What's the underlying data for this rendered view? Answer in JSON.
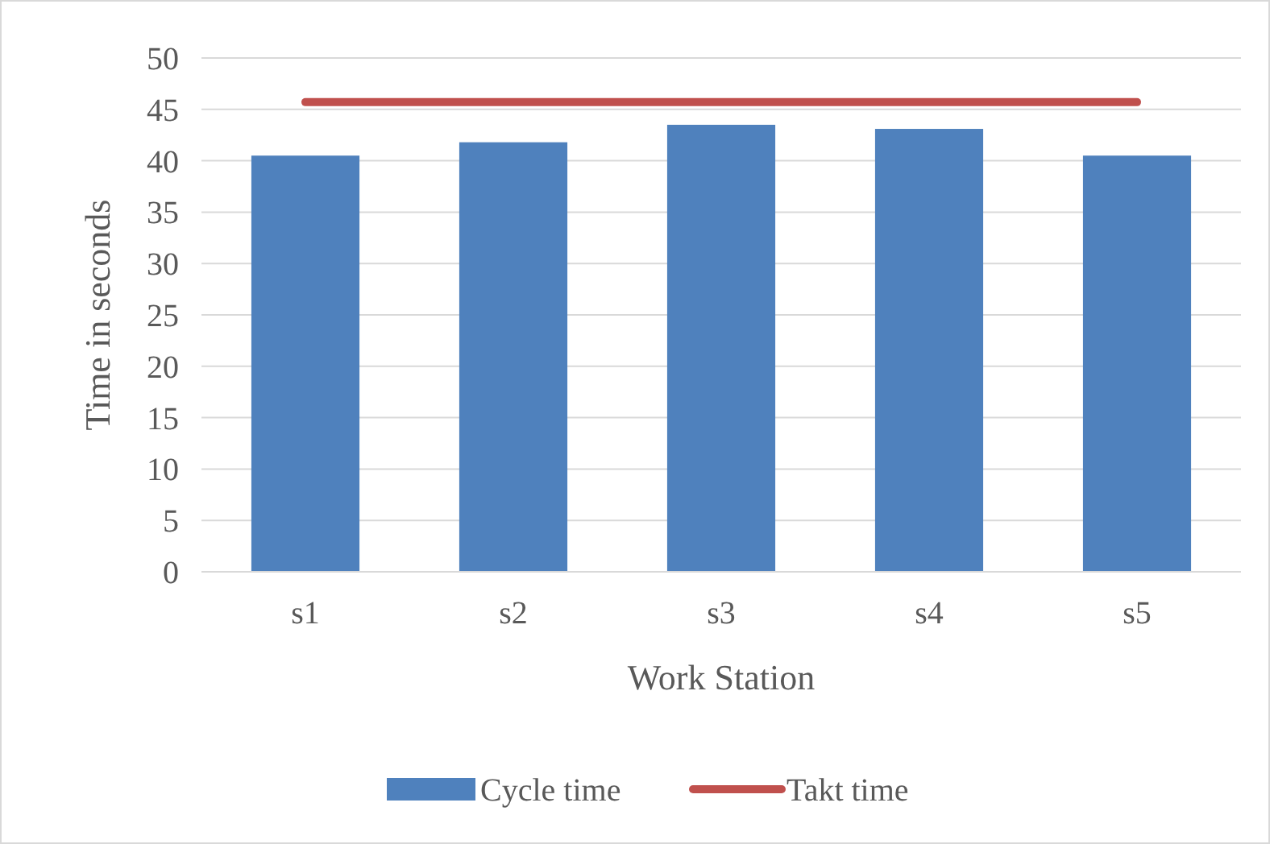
{
  "chart_data": {
    "type": "bar",
    "xlabel": "Work Station",
    "ylabel": "Time in seconds",
    "categories": [
      "s1",
      "s2",
      "s3",
      "s4",
      "s5"
    ],
    "series": [
      {
        "name": "Cycle time",
        "color": "#4f81bd",
        "values": [
          40.5,
          41.8,
          43.5,
          43.1,
          40.5
        ]
      },
      {
        "name": "Takt time",
        "type": "line",
        "color": "#c0504d",
        "values": [
          45.7,
          45.7,
          45.7,
          45.7,
          45.7
        ]
      }
    ],
    "ylim": [
      0,
      50
    ],
    "yticks": [
      0,
      5,
      10,
      15,
      20,
      25,
      30,
      35,
      40,
      45,
      50
    ],
    "grid": "y",
    "legend": "bottom"
  }
}
